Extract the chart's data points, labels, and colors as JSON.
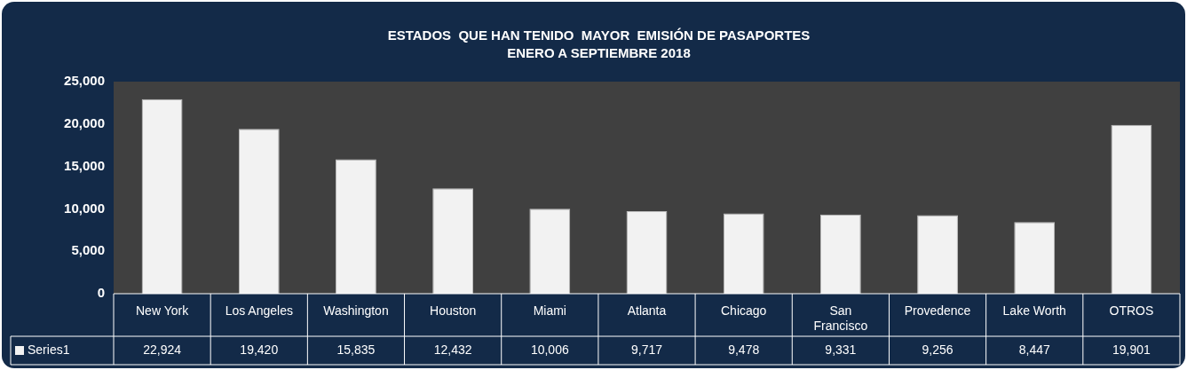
{
  "chart_data": {
    "type": "bar",
    "title": "ESTADOS  QUE HAN TENIDO  MAYOR  EMISIÓN DE PASAPORTES",
    "subtitle": "ENERO A SEPTIEMBRE 2018",
    "categories": [
      "New York",
      "Los Angeles",
      "Washington",
      "Houston",
      "Miami",
      "Atlanta",
      "Chicago",
      "San Francisco",
      "Provedence",
      "Lake Worth",
      "OTROS"
    ],
    "series": [
      {
        "name": "Series1",
        "color": "#f2f2f2",
        "values": [
          22924,
          19420,
          15835,
          12432,
          10006,
          9717,
          9478,
          9331,
          9256,
          8447,
          19901
        ],
        "value_labels": [
          "22,924",
          "19,420",
          "15,835",
          "12,432",
          "10,006",
          "9,717",
          "9,478",
          "9,331",
          "9,256",
          "8,447",
          "19,901"
        ]
      }
    ],
    "ylim": [
      0,
      25000
    ],
    "yticks": [
      0,
      {
        "value": 5000,
        "label": "5,000"
      },
      {
        "value": 10000,
        "label": "10,000"
      },
      {
        "value": 15000,
        "label": "15,000"
      },
      {
        "value": 20000,
        "label": "20,000"
      },
      {
        "value": 25000,
        "label": "25,000"
      }
    ],
    "grid": false,
    "legend": "bottom left"
  }
}
